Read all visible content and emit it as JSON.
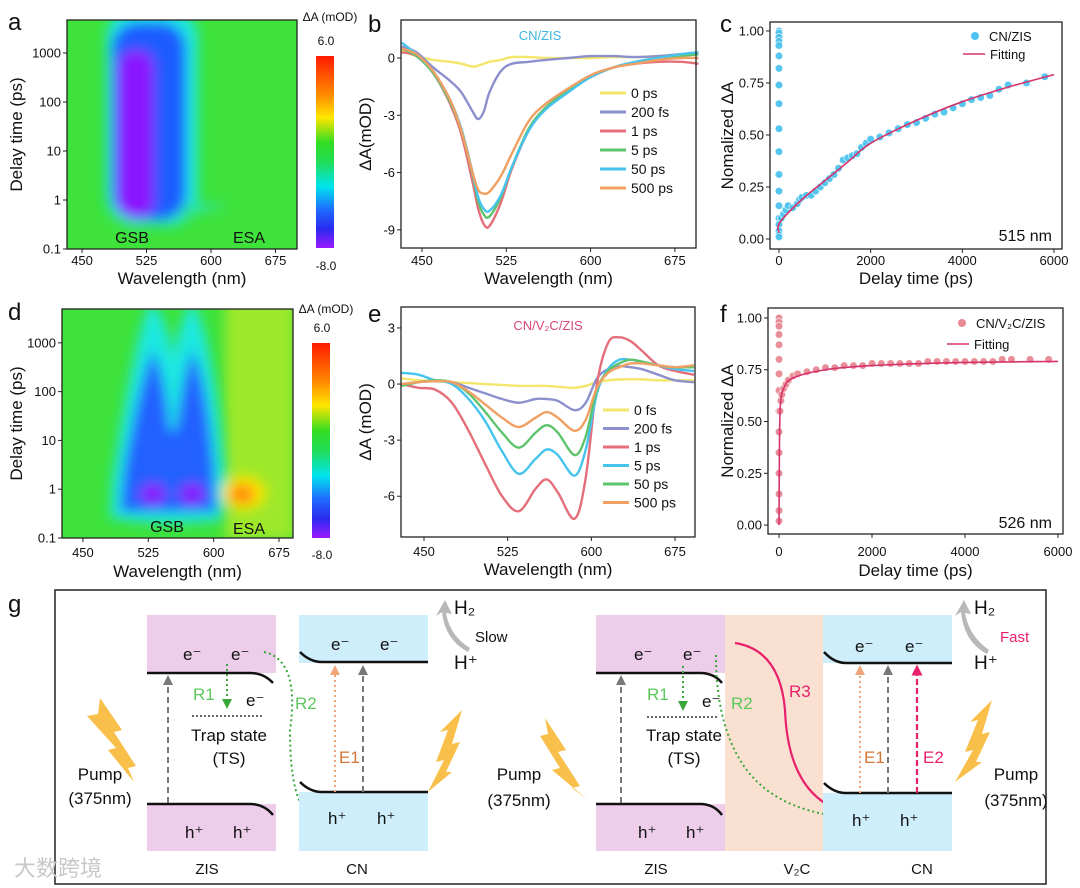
{
  "panel_labels": {
    "a": "a",
    "b": "b",
    "c": "c",
    "d": "d",
    "e": "e",
    "f": "f",
    "g": "g"
  },
  "colorbar": {
    "title": "ΔA (mOD)",
    "max_label": "6.0",
    "min_label": "-8.0",
    "max": 6.0,
    "min": -8.0
  },
  "chart_data": [
    {
      "id": "a",
      "type": "heatmap",
      "title": "",
      "xlabel": "Wavelength (nm)",
      "ylabel": "Delay time (ps)",
      "xticks": [
        "450",
        "525",
        "600",
        "675"
      ],
      "yticks": [
        "0.1",
        "1",
        "10",
        "100",
        "1000"
      ],
      "xlim": [
        432.5,
        700
      ],
      "ylim": [
        0.1,
        4710
      ],
      "yscale": "log",
      "annotations": [
        "GSB",
        "ESA"
      ],
      "features": [
        {
          "label": "GSB",
          "center_nm": 510,
          "delay_range_ps": [
            0.4,
            5000
          ],
          "value_mOD": -8.0
        }
      ]
    },
    {
      "id": "b",
      "type": "line",
      "title": "CN/ZIS",
      "title_color": "#3bb3e0",
      "xlabel": "Wavelength (nm)",
      "ylabel": "ΔA(mOD)",
      "xticks": [
        "450",
        "525",
        "600",
        "675"
      ],
      "yticks": [
        "0",
        "-3",
        "-6",
        "-9"
      ],
      "xlim": [
        431.3,
        693.8
      ],
      "ylim": [
        -9.95,
        1.99
      ],
      "legend": "right",
      "x": [
        432,
        445,
        460,
        475,
        485,
        495,
        500,
        505,
        510,
        520,
        530,
        545,
        560,
        580,
        600,
        620,
        640,
        660,
        680,
        696
      ],
      "series": [
        {
          "name": "0 ps",
          "color": "#f3e66a",
          "values": [
            0.4,
            0.1,
            -0.1,
            -0.2,
            -0.3,
            -0.45,
            -0.4,
            -0.3,
            -0.2,
            -0.1,
            0.05,
            0.05,
            0,
            0,
            0,
            0.05,
            0.05,
            0.1,
            0.2,
            0.3
          ]
        },
        {
          "name": "200 fs",
          "color": "#8c90cc",
          "values": [
            0.6,
            0.3,
            -0.5,
            -1.2,
            -1.8,
            -2.8,
            -3.2,
            -2.8,
            -1.8,
            -0.7,
            -0.3,
            -0.2,
            -0.1,
            0,
            0.1,
            0.1,
            0.05,
            0.1,
            0.2,
            0.2
          ]
        },
        {
          "name": "1 ps",
          "color": "#e46f7a",
          "values": [
            0.3,
            0.1,
            -0.8,
            -2.4,
            -4.0,
            -6.5,
            -7.9,
            -8.7,
            -8.8,
            -7.6,
            -5.8,
            -3.8,
            -2.6,
            -1.7,
            -1.0,
            -0.5,
            -0.3,
            -0.2,
            -0.2,
            -0.3
          ]
        },
        {
          "name": "5 ps",
          "color": "#5ec46c",
          "values": [
            0.5,
            0.1,
            -0.8,
            -2.3,
            -3.8,
            -6.1,
            -7.5,
            -8.2,
            -8.3,
            -7.3,
            -5.7,
            -3.7,
            -2.6,
            -1.7,
            -1.0,
            -0.5,
            -0.2,
            0,
            0.1,
            0.2
          ]
        },
        {
          "name": "50 ps",
          "color": "#47c4ee",
          "values": [
            0.8,
            0.2,
            -0.7,
            -2.2,
            -3.7,
            -6.0,
            -7.3,
            -7.9,
            -8.0,
            -7.2,
            -5.7,
            -3.8,
            -2.7,
            -1.8,
            -1.0,
            -0.5,
            -0.2,
            0,
            0.2,
            0.3
          ]
        },
        {
          "name": "500 ps",
          "color": "#f0a062",
          "values": [
            0.5,
            0.2,
            -0.7,
            -2.2,
            -3.8,
            -6.0,
            -6.9,
            -7.1,
            -7.0,
            -6.2,
            -5.0,
            -3.3,
            -2.4,
            -1.6,
            -0.9,
            -0.5,
            -0.3,
            -0.1,
            0,
            0
          ]
        }
      ]
    },
    {
      "id": "c",
      "type": "scatter",
      "title": "",
      "xlabel": "Delay time (ps)",
      "ylabel": "Nomalized ΔA",
      "xticks": [
        "0",
        "2000",
        "4000",
        "6000"
      ],
      "yticks": [
        "0.00",
        "0.25",
        "0.50",
        "0.75",
        "1.00"
      ],
      "xlim": [
        -196,
        6175
      ],
      "ylim": [
        -0.048,
        1.043
      ],
      "legend": "top-right",
      "annotation": "515 nm",
      "points": {
        "name": "CN/ZIS",
        "color": "#4cc3ef",
        "x": [
          0,
          0,
          0,
          0,
          0,
          0,
          0,
          0,
          0,
          0,
          0,
          0,
          0,
          0,
          0,
          0,
          0,
          0,
          0,
          50,
          100,
          150,
          200,
          300,
          400,
          450,
          500,
          600,
          700,
          800,
          900,
          1000,
          1100,
          1200,
          1300,
          1400,
          1500,
          1600,
          1700,
          1800,
          1900,
          2000,
          2200,
          2400,
          2600,
          2800,
          3000,
          3200,
          3400,
          3600,
          3800,
          4000,
          4200,
          4400,
          4600,
          4800,
          5000,
          5400,
          5800
        ],
        "y": [
          1,
          0.99,
          0.97,
          0.95,
          0.93,
          0.88,
          0.82,
          0.74,
          0.65,
          0.53,
          0.42,
          0.31,
          0.23,
          0.16,
          0.1,
          0.07,
          0.04,
          0.02,
          0.01,
          0.1,
          0.12,
          0.14,
          0.16,
          0.15,
          0.17,
          0.19,
          0.2,
          0.21,
          0.21,
          0.23,
          0.25,
          0.27,
          0.29,
          0.31,
          0.34,
          0.38,
          0.39,
          0.4,
          0.41,
          0.44,
          0.46,
          0.48,
          0.49,
          0.51,
          0.53,
          0.55,
          0.56,
          0.58,
          0.6,
          0.61,
          0.63,
          0.65,
          0.67,
          0.68,
          0.69,
          0.72,
          0.74,
          0.75,
          0.78
        ]
      },
      "fit": {
        "name": "Fitting",
        "color": "#d6336c",
        "x": [
          0,
          20,
          500,
          1000,
          1500,
          2000,
          3000,
          4000,
          5000,
          6000
        ],
        "y": [
          0.03,
          0.08,
          0.19,
          0.28,
          0.37,
          0.46,
          0.57,
          0.66,
          0.73,
          0.79
        ]
      }
    },
    {
      "id": "d",
      "type": "heatmap",
      "title": "",
      "xlabel": "Wavelength (nm)",
      "ylabel": "Delay time (ps)",
      "xticks": [
        "450",
        "525",
        "600",
        "675"
      ],
      "yticks": [
        "0.1",
        "1",
        "10",
        "100",
        "1000"
      ],
      "xlim": [
        426,
        691
      ],
      "ylim": [
        0.1,
        4940
      ],
      "yscale": "log",
      "annotations": [
        "GSB",
        "ESA"
      ],
      "features": [
        {
          "label": "GSB",
          "center_nm": 530,
          "delay_ps": 0.8,
          "value_mOD": -8.0
        },
        {
          "label": "GSB",
          "center_nm": 575,
          "delay_ps": 0.8,
          "value_mOD": -8.0
        },
        {
          "label": "ESA",
          "center_nm": 635,
          "delay_ps": 0.7,
          "value_mOD": 3.0
        }
      ]
    },
    {
      "id": "e",
      "type": "line",
      "title": "CN/V₂C/ZIS",
      "title_color": "#d9457a",
      "xlabel": "Wavelength (nm)",
      "ylabel": "ΔA (mOD)",
      "xticks": [
        "450",
        "525",
        "600",
        "675"
      ],
      "yticks": [
        "3",
        "0",
        "-3",
        "-6"
      ],
      "xlim": [
        429.4,
        692.9
      ],
      "ylim": [
        -8.18,
        4.12
      ],
      "legend": "right",
      "x": [
        430,
        445,
        460,
        475,
        490,
        505,
        520,
        535,
        550,
        560,
        570,
        585,
        595,
        605,
        615,
        625,
        635,
        645,
        660,
        675,
        692
      ],
      "series": [
        {
          "name": "0 fs",
          "color": "#f3e66a",
          "values": [
            0.3,
            0.2,
            0.15,
            0.1,
            0.05,
            0,
            -0.05,
            -0.1,
            -0.1,
            -0.1,
            -0.15,
            -0.2,
            -0.1,
            0.1,
            0.2,
            0.25,
            0.25,
            0.25,
            0.2,
            0.2,
            0.2
          ]
        },
        {
          "name": "200 fs",
          "color": "#8c90cc",
          "values": [
            0,
            0.1,
            0.15,
            0.1,
            -0.2,
            -0.5,
            -0.8,
            -1.0,
            -0.8,
            -0.8,
            -0.9,
            -1.4,
            -1.0,
            0.3,
            0.8,
            0.95,
            0.9,
            0.8,
            0.5,
            0.2,
            0.1
          ]
        },
        {
          "name": "1 ps",
          "color": "#e46f7a",
          "values": [
            0,
            -0.2,
            -0.3,
            -1.0,
            -2.5,
            -4.3,
            -6.0,
            -6.8,
            -5.6,
            -5.1,
            -5.8,
            -7.2,
            -5.0,
            0,
            2.2,
            2.5,
            2.3,
            1.8,
            1.0,
            0.7,
            0.5
          ]
        },
        {
          "name": "5 ps",
          "color": "#47c4ee",
          "values": [
            0.6,
            0.5,
            0.2,
            0,
            -0.8,
            -2.0,
            -3.6,
            -4.8,
            -4.0,
            -3.5,
            -3.8,
            -4.9,
            -3.5,
            -0.5,
            0.8,
            1.3,
            1.3,
            1.2,
            1.0,
            0.8,
            0.7
          ]
        },
        {
          "name": "50 ps",
          "color": "#5ec46c",
          "values": [
            -0.1,
            0.1,
            0.2,
            0.1,
            -0.5,
            -1.5,
            -2.6,
            -3.4,
            -2.6,
            -2.2,
            -2.6,
            -3.8,
            -2.8,
            -0.3,
            0.7,
            1.1,
            1.3,
            1.2,
            1.0,
            0.9,
            0.9
          ]
        },
        {
          "name": "500 ps",
          "color": "#f0a062",
          "values": [
            0,
            0.1,
            0.15,
            0.1,
            -0.4,
            -1.1,
            -1.8,
            -2.3,
            -1.8,
            -1.5,
            -1.8,
            -2.5,
            -1.9,
            -0.2,
            0.6,
            0.9,
            1.1,
            1.1,
            1.0,
            0.9,
            1.0
          ]
        }
      ]
    },
    {
      "id": "f",
      "type": "scatter",
      "title": "",
      "xlabel": "Delay time (ps)",
      "ylabel": "Normalized ΔA",
      "xticks": [
        "0",
        "2000",
        "4000",
        "6000"
      ],
      "yticks": [
        "0.00",
        "0.25",
        "0.50",
        "0.75",
        "1.00"
      ],
      "xlim": [
        -237,
        6108
      ],
      "ylim": [
        -0.043,
        1.048
      ],
      "legend": "top-right",
      "annotation": "526 nm",
      "points": {
        "name": "CN/V₂C/ZIS",
        "color": "#e88a94",
        "x": [
          0,
          0,
          0,
          0,
          0,
          0,
          0,
          0,
          0,
          0,
          0,
          0,
          0,
          0,
          0,
          20,
          40,
          60,
          100,
          150,
          200,
          300,
          400,
          600,
          800,
          1000,
          1200,
          1400,
          1600,
          1800,
          2000,
          2200,
          2400,
          2600,
          2800,
          3000,
          3200,
          3400,
          3600,
          3800,
          4000,
          4200,
          4400,
          4600,
          4800,
          5000,
          5400,
          5800
        ],
        "y": [
          1,
          0.98,
          0.96,
          0.92,
          0.87,
          0.8,
          0.73,
          0.65,
          0.55,
          0.45,
          0.35,
          0.25,
          0.15,
          0.07,
          0.02,
          0.55,
          0.6,
          0.63,
          0.66,
          0.68,
          0.7,
          0.72,
          0.73,
          0.74,
          0.75,
          0.76,
          0.76,
          0.77,
          0.77,
          0.77,
          0.78,
          0.78,
          0.78,
          0.78,
          0.78,
          0.78,
          0.79,
          0.79,
          0.79,
          0.79,
          0.79,
          0.79,
          0.79,
          0.79,
          0.8,
          0.8,
          0.8,
          0.8
        ]
      },
      "fit": {
        "name": "Fitting",
        "color": "#d6336c",
        "x": [
          0,
          10,
          30,
          100,
          300,
          1000,
          2000,
          4000,
          6000
        ],
        "y": [
          0,
          0.4,
          0.58,
          0.66,
          0.71,
          0.75,
          0.77,
          0.785,
          0.79
        ]
      }
    }
  ],
  "diagram": {
    "e": "e⁻",
    "h": "h⁺",
    "trap": "Trap state",
    "ts": "(TS)",
    "pump": "Pump",
    "pump_nm": "(375nm)",
    "r1": "R1",
    "r2": "R2",
    "r3": "R3",
    "e1": "E1",
    "e2": "E2",
    "h2": "H₂",
    "hplus": "H⁺",
    "slow": "Slow",
    "fast": "Fast",
    "zis": "ZIS",
    "cn": "CN",
    "v2c": "V₂C",
    "colors": {
      "zis": "#eecdea",
      "cn": "#cdeefa",
      "v2c": "#f9e0d0",
      "green": "#4cb848",
      "orange": "#e49468",
      "pink": "#e8216e",
      "bolt": "#f8c04a"
    }
  },
  "watermark": "大数跨境"
}
